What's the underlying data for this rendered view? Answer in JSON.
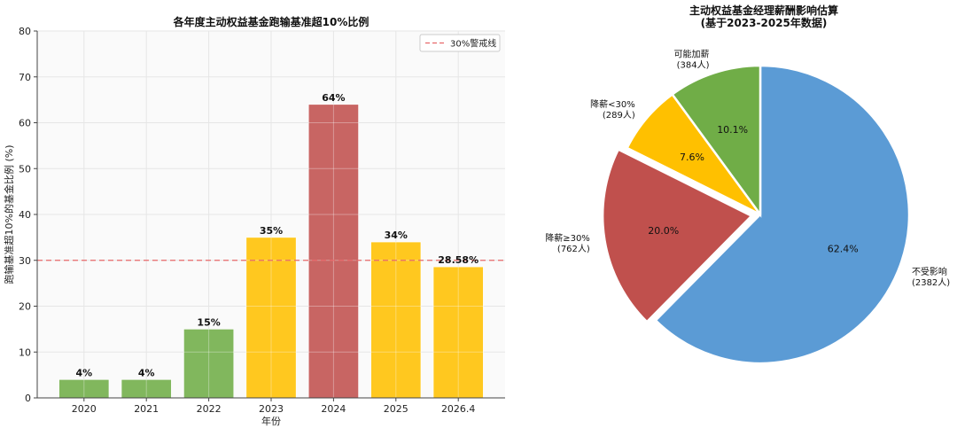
{
  "chart_data": [
    {
      "type": "bar",
      "title": "各年度主动权益基金跑输基准超10%比例",
      "xlabel": "年份",
      "ylabel": "跑输基准超10%的基金比例 (%)",
      "categories": [
        "2020",
        "2021",
        "2022",
        "2023",
        "2024",
        "2025",
        "2026.4"
      ],
      "values": [
        4,
        4,
        15,
        35,
        64,
        34,
        28.58
      ],
      "data_labels": [
        "4%",
        "4%",
        "15%",
        "35%",
        "64%",
        "34%",
        "28.58%"
      ],
      "bar_colors": [
        "#70ad47",
        "#70ad47",
        "#70ad47",
        "#ffc000",
        "#c0504d",
        "#ffc000",
        "#ffc000"
      ],
      "ylim": [
        0,
        80
      ],
      "yticks": [
        0,
        10,
        20,
        30,
        40,
        50,
        60,
        70,
        80
      ],
      "grid": true,
      "reference_line": {
        "value": 30,
        "label": "30%警戒线",
        "color": "#e8686a"
      },
      "legend_position": "top-right"
    },
    {
      "type": "pie",
      "title_lines": [
        "主动权益基金经理薪酬影响估算",
        "(基于2023-2025年数据)"
      ],
      "slices": [
        {
          "label": "不受影响",
          "count_label": "(2382人)",
          "value": 2382,
          "pct_label": "62.4%",
          "color": "#5b9bd5",
          "explode": false
        },
        {
          "label": "降薪≥30%",
          "count_label": "(762人)",
          "value": 762,
          "pct_label": "20.0%",
          "color": "#c0504d",
          "explode": true
        },
        {
          "label": "降薪<30%",
          "count_label": "(289人)",
          "value": 289,
          "pct_label": "7.6%",
          "color": "#ffc000",
          "explode": false
        },
        {
          "label": "可能加薪",
          "count_label": "(384人)",
          "value": 384,
          "pct_label": "10.1%",
          "color": "#70ad47",
          "explode": false
        }
      ]
    }
  ]
}
